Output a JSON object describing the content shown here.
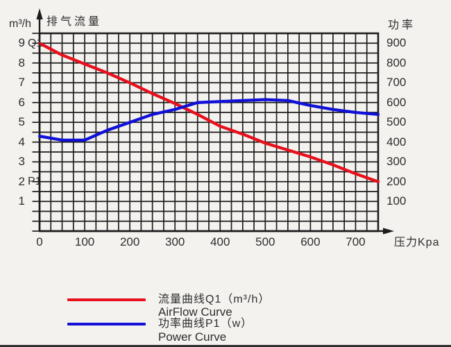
{
  "labels": {
    "left_unit": "m³/h",
    "left_axis_title": "排气流量",
    "right_axis_title": "功率",
    "x_axis_title": "压力Kpa",
    "q1": "Q1",
    "p1": "P1"
  },
  "axis": {
    "y_left_ticks": [
      "9",
      "8",
      "7",
      "6",
      "5",
      "4",
      "3",
      "2",
      "1"
    ],
    "y_right_ticks": [
      "900",
      "800",
      "700",
      "600",
      "500",
      "400",
      "300",
      "200",
      "100"
    ],
    "x_ticks": [
      "0",
      "100",
      "200",
      "300",
      "400",
      "500",
      "600",
      "700"
    ]
  },
  "legend": {
    "items": [
      {
        "color": "#e8101c",
        "label_zh": "流量曲线Q1（m³/h）",
        "label_en": "AirFlow Curve"
      },
      {
        "color": "#1010d8",
        "label_zh": "功率曲线P1（w）",
        "label_en": "Power Curve"
      }
    ]
  },
  "chart_data": {
    "type": "line",
    "title": "",
    "xlabel": "压力Kpa",
    "ylabel_left": "排气流量 (m³/h)",
    "ylabel_right": "功率 (w)",
    "xlim": [
      0,
      750
    ],
    "ylim_left": [
      -0.5,
      9.5
    ],
    "ylim_right": [
      -50,
      950
    ],
    "grid": {
      "on": true,
      "x_minor_step": 25,
      "y_minor_step_left": 0.5
    },
    "legend_position": "bottom",
    "x": [
      0,
      50,
      100,
      150,
      200,
      250,
      300,
      350,
      400,
      450,
      500,
      550,
      600,
      650,
      700,
      750
    ],
    "series": [
      {
        "name": "流量曲线Q1（m³/h） / AirFlow Curve",
        "axis": "left",
        "unit": "m³/h",
        "color": "#e8101c",
        "values": [
          9.0,
          8.4,
          7.95,
          7.5,
          7.0,
          6.45,
          5.95,
          5.4,
          4.8,
          4.4,
          3.95,
          3.6,
          3.25,
          2.85,
          2.4,
          2.0
        ]
      },
      {
        "name": "功率曲线P1（w） / Power Curve",
        "axis": "right",
        "unit": "w",
        "color": "#1010d8",
        "values": [
          430,
          410,
          410,
          460,
          500,
          540,
          565,
          600,
          605,
          610,
          615,
          610,
          585,
          565,
          550,
          540
        ]
      }
    ]
  },
  "colors": {
    "background": "#f3f2ef",
    "grid": "#1c1c1c",
    "text": "#2d2d2d",
    "airflow": "#e8101c",
    "power": "#1010d8"
  }
}
